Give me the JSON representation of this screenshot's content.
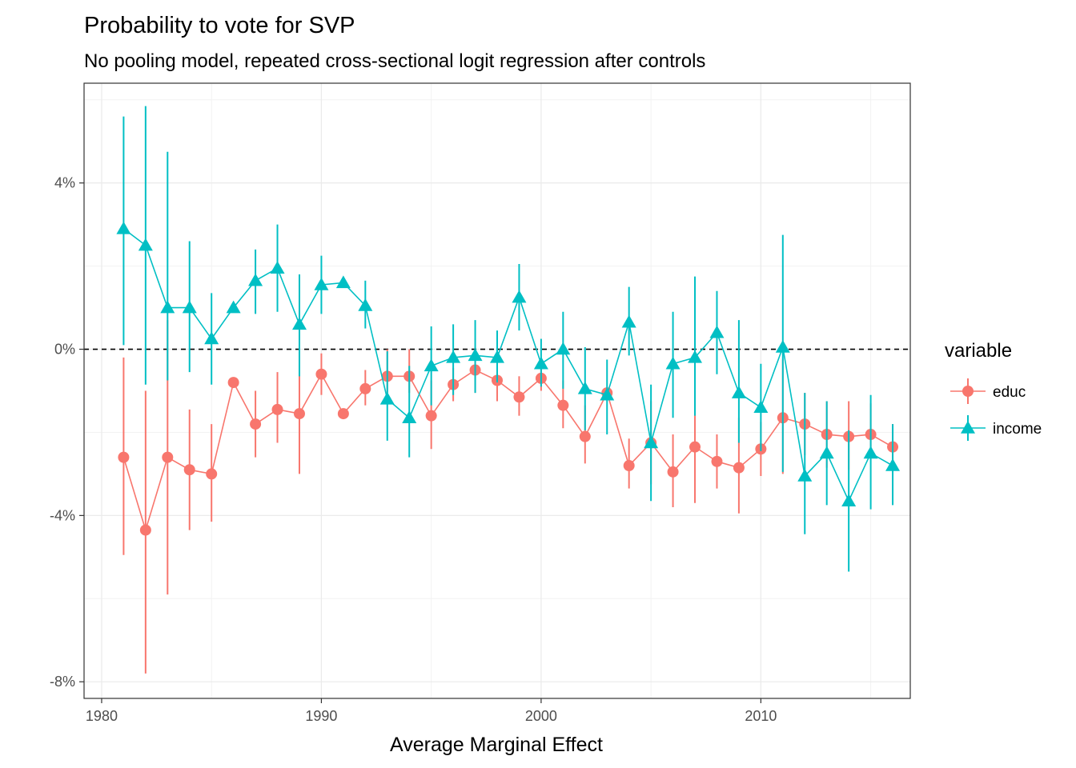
{
  "chart_data": {
    "type": "line",
    "title": "Probability to vote for SVP",
    "subtitle": "No pooling model, repeated cross-sectional logit regression after controls",
    "xlabel": "Average Marginal Effect",
    "ylabel": "",
    "xlim": [
      1979.2,
      2016.8
    ],
    "ylim": [
      -8.4,
      6.4
    ],
    "x_ticks": [
      1980,
      1990,
      2000,
      2010
    ],
    "x_tick_labels": [
      "1980",
      "1990",
      "2000",
      "2010"
    ],
    "y_ticks": [
      -8,
      -4,
      0,
      4
    ],
    "y_tick_labels": [
      "-8%",
      "-4%",
      "0%",
      "4%"
    ],
    "reference_line": {
      "y": 0,
      "style": "dashed"
    },
    "grid": true,
    "legend": {
      "title": "variable",
      "position": "right"
    },
    "x": [
      1981,
      1982,
      1983,
      1984,
      1985,
      1986,
      1987,
      1988,
      1989,
      1990,
      1991,
      1992,
      1993,
      1994,
      1995,
      1996,
      1997,
      1998,
      1999,
      2000,
      2001,
      2002,
      2003,
      2004,
      2005,
      2006,
      2007,
      2008,
      2009,
      2010,
      2011,
      2012,
      2013,
      2014,
      2015,
      2016
    ],
    "series": [
      {
        "name": "educ",
        "color": "#f8766d",
        "marker": "circle",
        "values": [
          -2.6,
          -4.35,
          -2.6,
          -2.9,
          -3.0,
          -0.8,
          -1.8,
          -1.45,
          -1.55,
          -0.6,
          -1.55,
          -0.95,
          -0.65,
          -0.65,
          -1.6,
          -0.85,
          -0.5,
          -0.75,
          -1.15,
          -0.7,
          -1.35,
          -2.1,
          -1.05,
          -2.8,
          -2.25,
          -2.95,
          -2.35,
          -2.7,
          -2.85,
          -2.4,
          -1.65,
          -1.8,
          -2.05,
          -2.1,
          -2.05,
          -2.35
        ],
        "lower": [
          -4.95,
          -7.8,
          -5.9,
          -4.35,
          -4.15,
          -0.8,
          -2.6,
          -2.25,
          -3.0,
          -1.1,
          -1.55,
          -1.35,
          -1.05,
          -1.05,
          -2.4,
          -1.25,
          -1.05,
          -1.25,
          -1.6,
          -1.0,
          -1.9,
          -2.75,
          -1.05,
          -3.35,
          -3.25,
          -3.8,
          -3.7,
          -3.35,
          -3.95,
          -3.05,
          -3.0,
          -2.55,
          -2.85,
          -2.9,
          -2.6,
          -2.9
        ],
        "upper": [
          -0.2,
          -1.0,
          0.7,
          -1.45,
          -1.8,
          -0.8,
          -1.0,
          -0.55,
          0.0,
          -0.1,
          -1.55,
          -0.5,
          0.0,
          0.0,
          -0.75,
          -0.45,
          0.05,
          -0.25,
          -0.65,
          -0.35,
          -0.75,
          -1.35,
          -1.05,
          -2.15,
          -1.25,
          -2.05,
          -1.0,
          -2.05,
          -1.65,
          -1.75,
          -0.25,
          -1.05,
          -1.25,
          -1.25,
          -1.3,
          -1.8
        ]
      },
      {
        "name": "income",
        "color": "#00bfc4",
        "marker": "triangle",
        "values": [
          2.9,
          2.5,
          1.0,
          1.0,
          0.25,
          1.0,
          1.65,
          1.95,
          0.6,
          1.55,
          1.6,
          1.05,
          -1.2,
          -1.65,
          -0.4,
          -0.2,
          -0.15,
          -0.2,
          1.25,
          -0.35,
          0.0,
          -0.95,
          -1.1,
          0.65,
          -2.25,
          -0.35,
          -0.2,
          0.4,
          -1.05,
          -1.4,
          0.05,
          -3.05,
          -2.5,
          -3.65,
          -2.5,
          -2.8
        ],
        "lower": [
          0.1,
          -0.85,
          -0.75,
          -0.55,
          -0.85,
          1.0,
          0.85,
          0.9,
          -0.65,
          0.85,
          1.6,
          0.5,
          -2.2,
          -2.6,
          -1.35,
          -1.1,
          -1.05,
          -0.8,
          0.45,
          -0.9,
          -0.95,
          -1.95,
          -2.05,
          -0.15,
          -3.65,
          -1.65,
          -1.6,
          -0.6,
          -2.25,
          -2.45,
          -2.95,
          -4.45,
          -3.75,
          -5.35,
          -3.85,
          -3.75
        ],
        "upper": [
          5.6,
          5.85,
          4.75,
          2.6,
          1.35,
          1.0,
          2.4,
          3.0,
          1.8,
          2.25,
          1.6,
          1.65,
          -0.05,
          -0.4,
          0.55,
          0.6,
          0.7,
          0.45,
          2.05,
          0.25,
          0.9,
          0.05,
          -0.25,
          1.5,
          -0.85,
          0.9,
          1.75,
          1.4,
          0.7,
          -0.35,
          2.75,
          -1.05,
          -1.25,
          -1.95,
          -1.1,
          -1.8
        ]
      }
    ]
  }
}
